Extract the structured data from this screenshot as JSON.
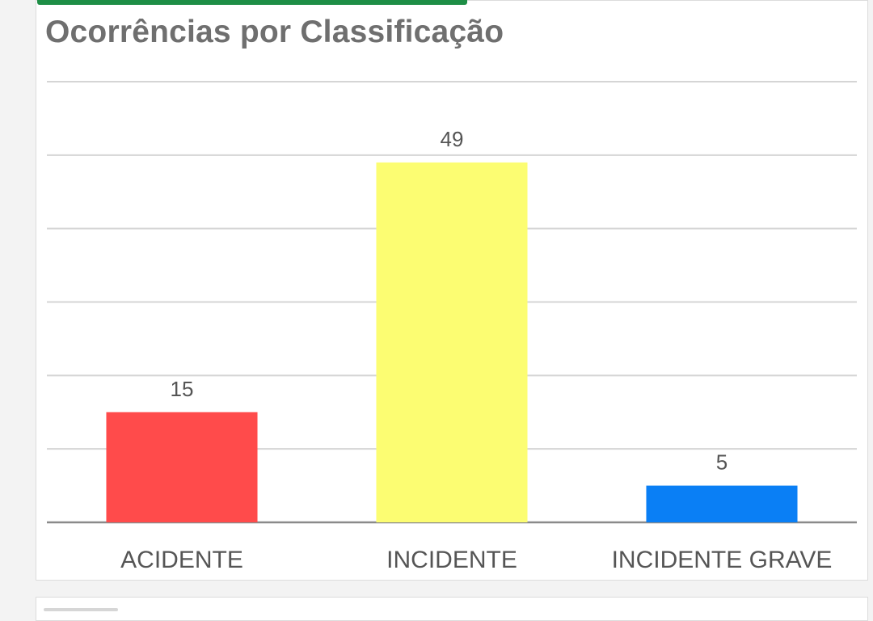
{
  "title": "Ocorrências por Classificação",
  "colors": {
    "accent": "#1e8e46",
    "grid": "#d5d5d5",
    "axis": "#8a8a8a",
    "label_text": "#555555",
    "value_text": "#555555"
  },
  "chart_data": {
    "type": "bar",
    "title": "Ocorrências por Classificação",
    "categories": [
      "ACIDENTE",
      "INCIDENTE",
      "INCIDENTE GRAVE"
    ],
    "values": [
      15,
      49,
      5
    ],
    "bar_colors": [
      "#ff4b4b",
      "#fcfd72",
      "#0a7ff5"
    ],
    "xlabel": "",
    "ylabel": "",
    "ylim": [
      0,
      60
    ],
    "gridlines": [
      10,
      20,
      30,
      40,
      50,
      60
    ],
    "grid": true,
    "legend": "none"
  }
}
